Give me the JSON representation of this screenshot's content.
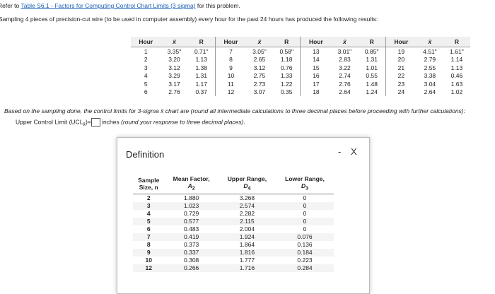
{
  "header": {
    "intro_prefix": "Refer to",
    "table_link": "Table S6.1 - Factors for Computing Control Chart Limits (3 sigma)",
    "intro_suffix": "for this problem.",
    "problem": "Sampling 4 pieces of precision-cut wire (to be used in computer assembly) every hour for the past 24 hours has produced the following results:"
  },
  "data_table": {
    "headers": [
      "Hour",
      "x̄",
      "R",
      "Hour",
      "x̄",
      "R",
      "Hour",
      "x̄",
      "R",
      "Hour",
      "x̄",
      "R"
    ],
    "rows": [
      [
        "1",
        "3.35\"",
        "0.71\"",
        "7",
        "3.05\"",
        "0.58\"",
        "13",
        "3.01\"",
        "0.85\"",
        "19",
        "4.51\"",
        "1.61\""
      ],
      [
        "2",
        "3.20",
        "1.13",
        "8",
        "2.65",
        "1.18",
        "14",
        "2.83",
        "1.31",
        "20",
        "2.79",
        "1.14"
      ],
      [
        "3",
        "3.12",
        "1.38",
        "9",
        "3.12",
        "0.76",
        "15",
        "3.22",
        "1.01",
        "21",
        "2.55",
        "1.13"
      ],
      [
        "4",
        "3.29",
        "1.31",
        "10",
        "2.75",
        "1.33",
        "16",
        "2.74",
        "0.55",
        "22",
        "3.38",
        "0.46"
      ],
      [
        "5",
        "3.17",
        "1.17",
        "11",
        "2.73",
        "1.22",
        "17",
        "2.76",
        "1.48",
        "23",
        "3.04",
        "1.63"
      ],
      [
        "6",
        "2.76",
        "0.37",
        "12",
        "3.07",
        "0.35",
        "18",
        "2.64",
        "1.24",
        "24",
        "2.64",
        "1.02"
      ]
    ]
  },
  "question": {
    "text": "Based on the sampling done, the control limits for 3-sigma x̄ chart are (round all intermediate calculations to three decimal places before proceeding with further calculations):",
    "ucl_label": "Upper Control Limit (UCL",
    "ucl_sub": "x̄",
    "ucl_close": ")=",
    "ucl_unit": "inches",
    "ucl_note": "(round your response to three decimal places)."
  },
  "dialog": {
    "title": "Definition",
    "minimize": "-",
    "close": "X",
    "headers": [
      {
        "line1": "Sample",
        "line2": "Size, n"
      },
      {
        "line1": "Mean Factor,",
        "symbol": "A",
        "sub": "2"
      },
      {
        "line1": "Upper Range,",
        "symbol": "D",
        "sub": "4"
      },
      {
        "line1": "Lower Range,",
        "symbol": "D",
        "sub": "3"
      }
    ],
    "rows": [
      [
        "2",
        "1.880",
        "3.268",
        "0"
      ],
      [
        "3",
        "1.023",
        "2.574",
        "0"
      ],
      [
        "4",
        "0.729",
        "2.282",
        "0"
      ],
      [
        "5",
        "0.577",
        "2.115",
        "0"
      ],
      [
        "6",
        "0.483",
        "2.004",
        "0"
      ],
      [
        "7",
        "0.419",
        "1.924",
        "0.076"
      ],
      [
        "8",
        "0.373",
        "1.864",
        "0.136"
      ],
      [
        "9",
        "0.337",
        "1.816",
        "0.184"
      ],
      [
        "10",
        "0.308",
        "1.777",
        "0.223"
      ],
      [
        "12",
        "0.266",
        "1.716",
        "0.284"
      ]
    ]
  }
}
